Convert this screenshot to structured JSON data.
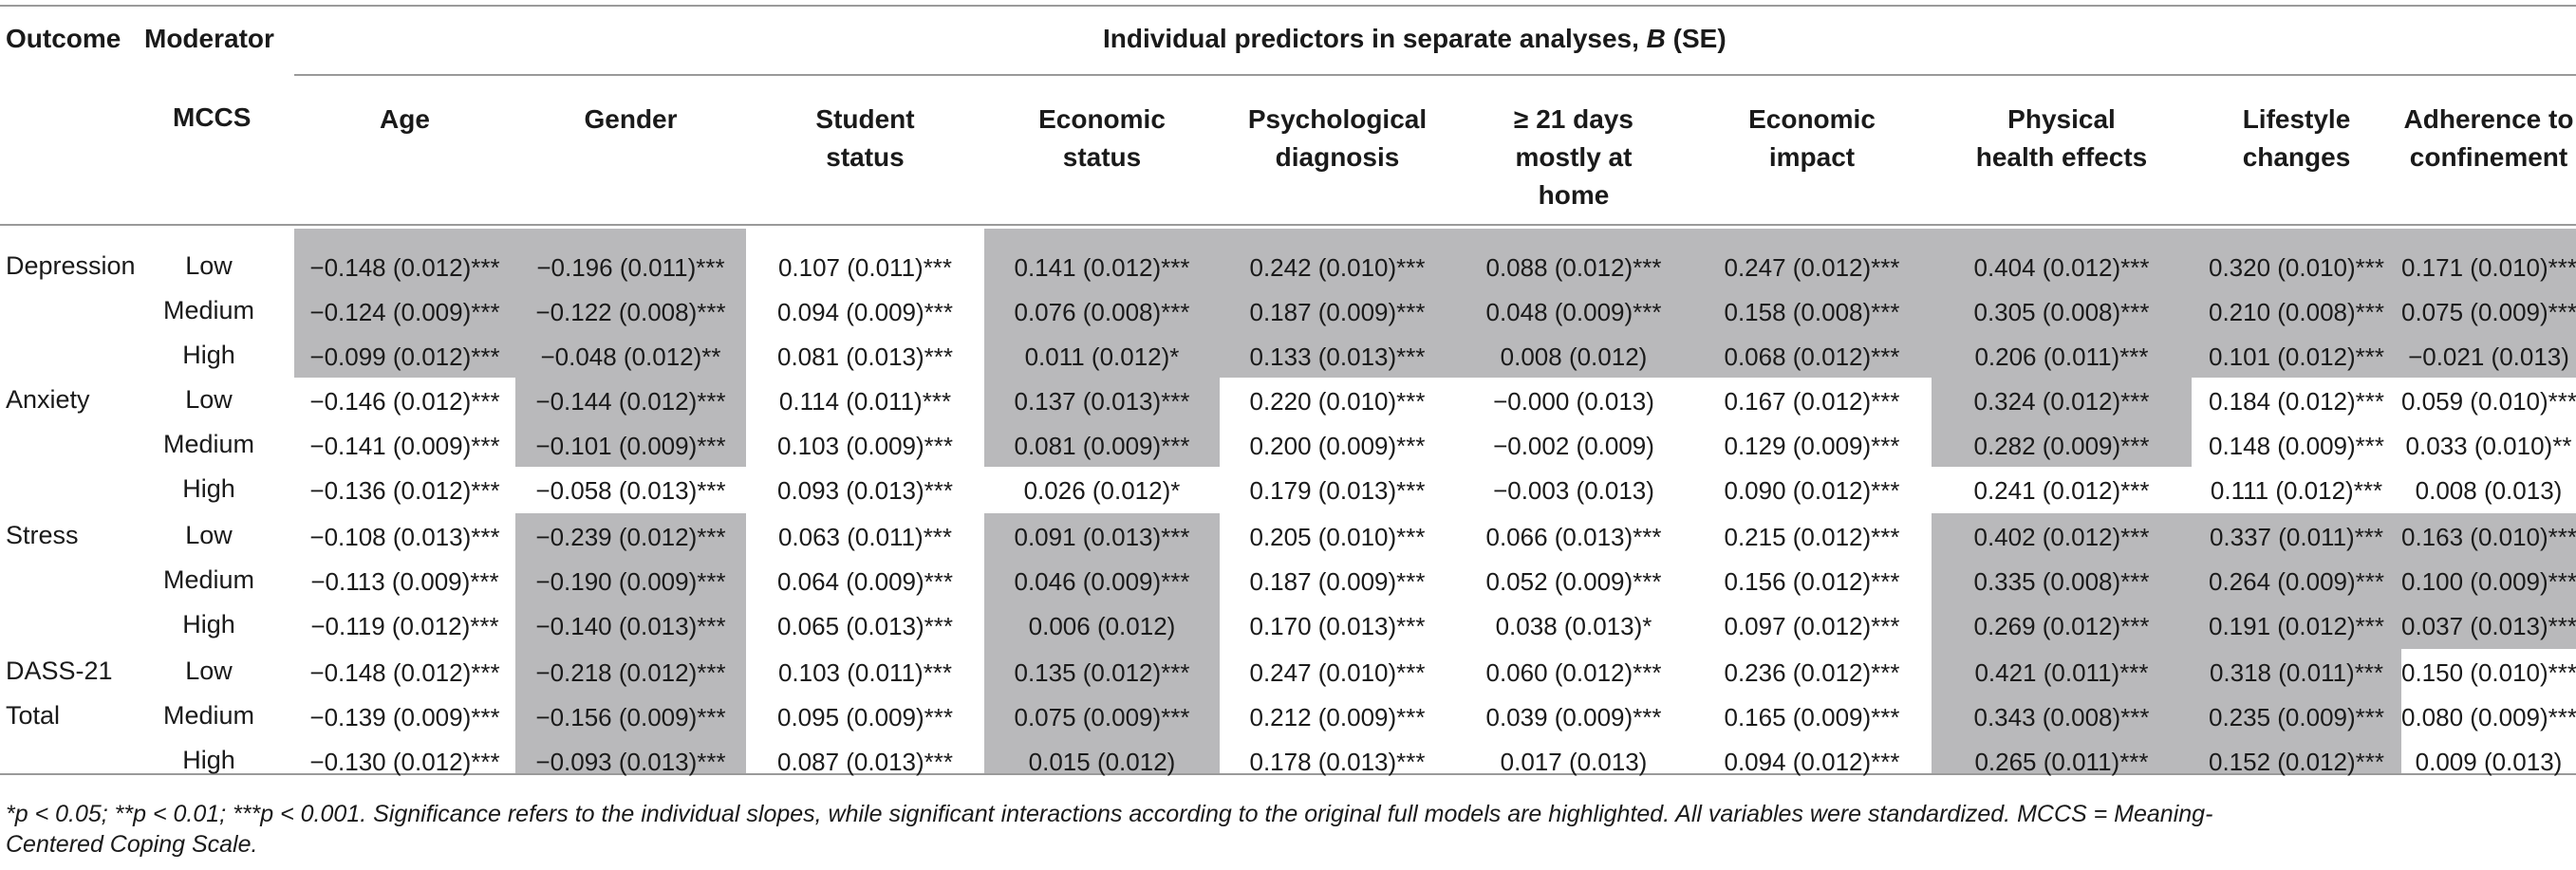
{
  "header": {
    "outcome": "Outcome",
    "moderator": "Moderator",
    "spanner_prefix": "Individual predictors in separate analyses, ",
    "spanner_b": "B",
    "spanner_suffix": " (SE)",
    "mccs": "MCCS",
    "columns": [
      "Age",
      "Gender",
      "Student\nstatus",
      "Economic\nstatus",
      "Psychological\ndiagnosis",
      "≥ 21 days\nmostly at\nhome",
      "Economic\nimpact",
      "Physical\nhealth effects",
      "Lifestyle\nchanges",
      "Adherence to\nconfinement"
    ]
  },
  "groups": [
    {
      "outcome": "Depression",
      "rows": [
        {
          "level": "Low",
          "values": [
            "−0.148 (0.012)***",
            "−0.196 (0.011)***",
            "0.107 (0.011)***",
            "0.141 (0.012)***",
            "0.242 (0.010)***",
            "0.088 (0.012)***",
            "0.247 (0.012)***",
            "0.404 (0.012)***",
            "0.320 (0.010)***",
            "0.171 (0.010)***"
          ]
        },
        {
          "level": "Medium",
          "values": [
            "−0.124 (0.009)***",
            "−0.122 (0.008)***",
            "0.094 (0.009)***",
            "0.076 (0.008)***",
            "0.187 (0.009)***",
            "0.048 (0.009)***",
            "0.158 (0.008)***",
            "0.305 (0.008)***",
            "0.210 (0.008)***",
            "0.075 (0.009)***"
          ]
        },
        {
          "level": "High",
          "values": [
            "−0.099 (0.012)***",
            "−0.048 (0.012)**",
            "0.081 (0.013)***",
            "0.011 (0.012)*",
            "0.133 (0.013)***",
            "0.008 (0.012)",
            "0.068 (0.012)***",
            "0.206 (0.011)***",
            "0.101 (0.012)***",
            "−0.021 (0.013)"
          ]
        }
      ],
      "highlighted_columns": [
        0,
        1,
        3,
        4,
        5,
        6,
        7,
        8,
        9
      ]
    },
    {
      "outcome": "Anxiety",
      "rows": [
        {
          "level": "Low",
          "values": [
            "−0.146 (0.012)***",
            "−0.144 (0.012)***",
            "0.114 (0.011)***",
            "0.137 (0.013)***",
            "0.220 (0.010)***",
            "−0.000 (0.013)",
            "0.167 (0.012)***",
            "0.324 (0.012)***",
            "0.184 (0.012)***",
            "0.059 (0.010)***"
          ]
        },
        {
          "level": "Medium",
          "values": [
            "−0.141 (0.009)***",
            "−0.101 (0.009)***",
            "0.103 (0.009)***",
            "0.081 (0.009)***",
            "0.200 (0.009)***",
            "−0.002 (0.009)",
            "0.129 (0.009)***",
            "0.282 (0.009)***",
            "0.148 (0.009)***",
            "0.033 (0.010)**"
          ]
        },
        {
          "level": "High",
          "values": [
            "−0.136 (0.012)***",
            "−0.058 (0.013)***",
            "0.093 (0.013)***",
            "0.026 (0.012)*",
            "0.179 (0.013)***",
            "−0.003 (0.013)",
            "0.090 (0.012)***",
            "0.241 (0.012)***",
            "0.111 (0.012)***",
            "0.008 (0.013)"
          ]
        }
      ],
      "highlighted_columns": [
        1,
        3,
        7
      ]
    },
    {
      "outcome": "Stress",
      "rows": [
        {
          "level": "Low",
          "values": [
            "−0.108 (0.013)***",
            "−0.239 (0.012)***",
            "0.063 (0.011)***",
            "0.091 (0.013)***",
            "0.205 (0.010)***",
            "0.066 (0.013)***",
            "0.215 (0.012)***",
            "0.402 (0.012)***",
            "0.337 (0.011)***",
            "0.163 (0.010)***"
          ]
        },
        {
          "level": "Medium",
          "values": [
            "−0.113 (0.009)***",
            "−0.190 (0.009)***",
            "0.064 (0.009)***",
            "0.046 (0.009)***",
            "0.187 (0.009)***",
            "0.052 (0.009)***",
            "0.156 (0.012)***",
            "0.335 (0.008)***",
            "0.264 (0.009)***",
            "0.100 (0.009)***"
          ]
        },
        {
          "level": "High",
          "values": [
            "−0.119 (0.012)***",
            "−0.140 (0.013)***",
            "0.065 (0.013)***",
            "0.006 (0.012)",
            "0.170 (0.013)***",
            "0.038 (0.013)*",
            "0.097 (0.012)***",
            "0.269 (0.012)***",
            "0.191 (0.012)***",
            "0.037 (0.013)***"
          ]
        }
      ],
      "highlighted_columns": [
        1,
        3,
        7,
        8,
        9
      ]
    },
    {
      "outcome": "DASS-21\nTotal",
      "rows": [
        {
          "level": "Low",
          "values": [
            "−0.148 (0.012)***",
            "−0.218 (0.012)***",
            "0.103 (0.011)***",
            "0.135 (0.012)***",
            "0.247 (0.010)***",
            "0.060 (0.012)***",
            "0.236 (0.012)***",
            "0.421 (0.011)***",
            "0.318 (0.011)***",
            "0.150 (0.010)***"
          ]
        },
        {
          "level": "Medium",
          "values": [
            "−0.139 (0.009)***",
            "−0.156 (0.009)***",
            "0.095 (0.009)***",
            "0.075 (0.009)***",
            "0.212 (0.009)***",
            "0.039 (0.009)***",
            "0.165 (0.009)***",
            "0.343 (0.008)***",
            "0.235 (0.009)***",
            "0.080 (0.009)***"
          ]
        },
        {
          "level": "High",
          "values": [
            "−0.130 (0.012)***",
            "−0.093 (0.013)***",
            "0.087 (0.013)***",
            "0.015 (0.012)",
            "0.178 (0.013)***",
            "0.017 (0.013)",
            "0.094 (0.012)***",
            "0.265 (0.011)***",
            "0.152 (0.012)***",
            "0.009 (0.013)"
          ]
        }
      ],
      "highlighted_columns": [
        1,
        3,
        7,
        8
      ]
    }
  ],
  "footnote": {
    "line1": "*p < 0.05; **p < 0.01; ***p < 0.001. Significance refers to the individual slopes, while significant interactions according to the original full models are highlighted. All variables were standardized. MCCS = Meaning-",
    "line2": "Centered Coping Scale."
  },
  "colors": {
    "highlight": "#b9b9bb",
    "rule": "#9a9a9a",
    "text": "#1a1a1a"
  }
}
